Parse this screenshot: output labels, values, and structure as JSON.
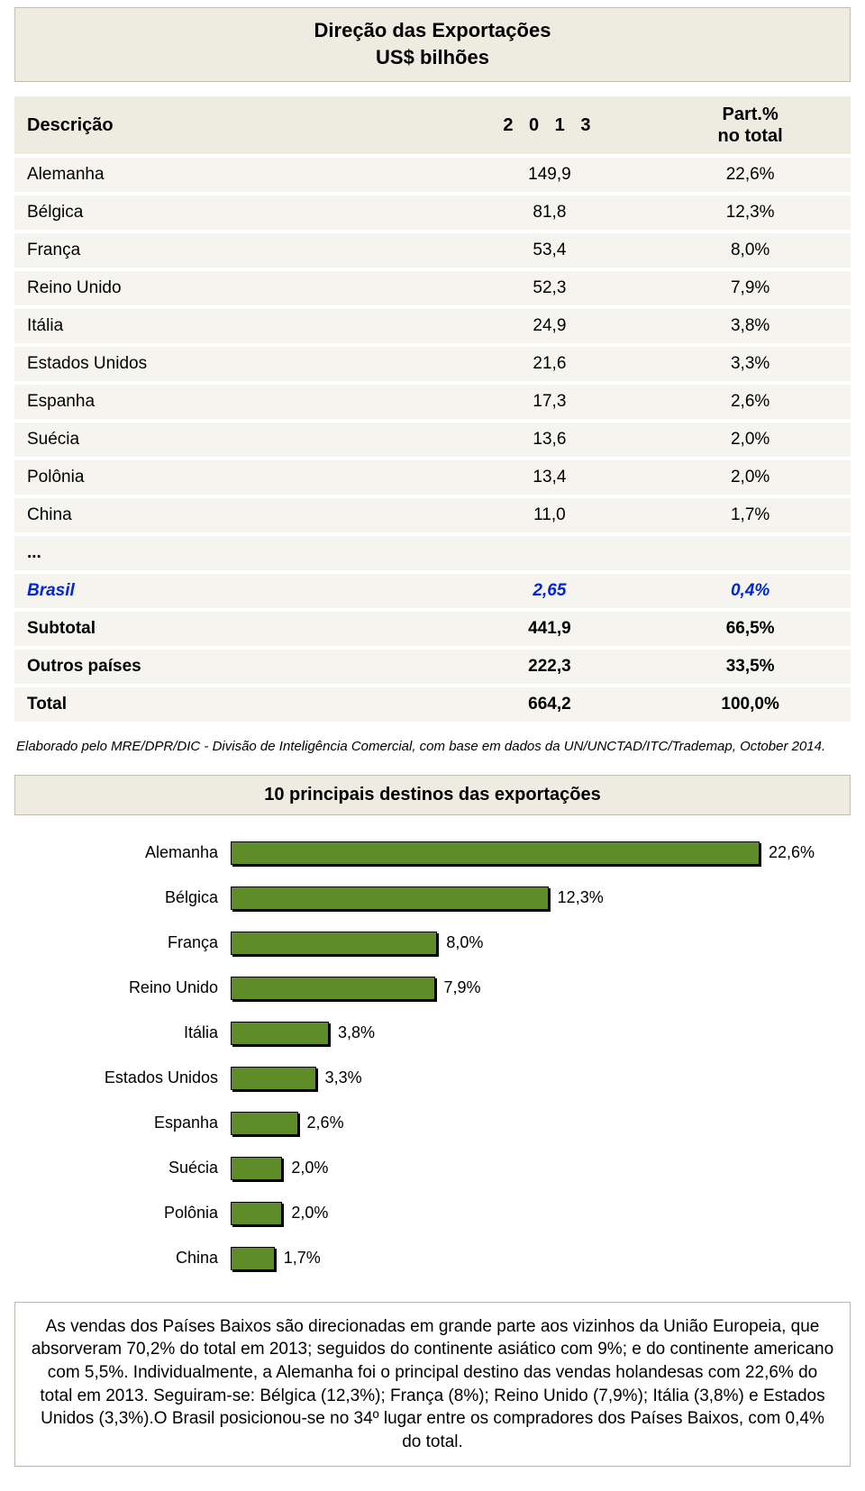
{
  "title": {
    "line1": "Direção das Exportações",
    "line2": "US$ bilhões"
  },
  "header": {
    "c1": "Descrição",
    "c2": "2 0 1 3",
    "c3a": "Part.%",
    "c3b": "no total"
  },
  "rows": [
    {
      "d": "Alemanha",
      "v": "149,9",
      "p": "22,6%",
      "bold": false
    },
    {
      "d": "Bélgica",
      "v": "81,8",
      "p": "12,3%",
      "bold": false
    },
    {
      "d": "França",
      "v": "53,4",
      "p": "8,0%",
      "bold": false
    },
    {
      "d": "Reino Unido",
      "v": "52,3",
      "p": "7,9%",
      "bold": false
    },
    {
      "d": "Itália",
      "v": "24,9",
      "p": "3,8%",
      "bold": false
    },
    {
      "d": "Estados Unidos",
      "v": "21,6",
      "p": "3,3%",
      "bold": false
    },
    {
      "d": "Espanha",
      "v": "17,3",
      "p": "2,6%",
      "bold": false
    },
    {
      "d": "Suécia",
      "v": "13,6",
      "p": "2,0%",
      "bold": false
    },
    {
      "d": "Polônia",
      "v": "13,4",
      "p": "2,0%",
      "bold": false
    },
    {
      "d": "China",
      "v": "11,0",
      "p": "1,7%",
      "bold": false
    }
  ],
  "ellipsis": "...",
  "brasil": {
    "d": "Brasil",
    "v": "2,65",
    "p": "0,4%"
  },
  "totals": [
    {
      "d": "Subtotal",
      "v": "441,9",
      "p": "66,5%"
    },
    {
      "d": "Outros países",
      "v": "222,3",
      "p": "33,5%"
    },
    {
      "d": "Total",
      "v": "664,2",
      "p": "100,0%"
    }
  ],
  "source": "Elaborado pelo MRE/DPR/DIC - Divisão de Inteligência Comercial, com base em dados da UN/UNCTAD/ITC/Trademap, October 2014.",
  "chart": {
    "title": "10 principais destinos das exportações",
    "type": "bar",
    "bar_color": "#5d8c29",
    "border_color": "#000000",
    "shadow_color": "#000000",
    "background": "#ffffff",
    "max_pct": 22.6,
    "full_width_pct": 22.6,
    "label_fontsize": 18,
    "value_fontsize": 18,
    "series": [
      {
        "label": "Alemanha",
        "pct": 22.6,
        "text": "22,6%"
      },
      {
        "label": "Bélgica",
        "pct": 12.3,
        "text": "12,3%"
      },
      {
        "label": "França",
        "pct": 8.0,
        "text": "8,0%"
      },
      {
        "label": "Reino Unido",
        "pct": 7.9,
        "text": "7,9%"
      },
      {
        "label": "Itália",
        "pct": 3.8,
        "text": "3,8%"
      },
      {
        "label": "Estados Unidos",
        "pct": 3.3,
        "text": "3,3%"
      },
      {
        "label": "Espanha",
        "pct": 2.6,
        "text": "2,6%"
      },
      {
        "label": "Suécia",
        "pct": 2.0,
        "text": "2,0%"
      },
      {
        "label": "Polônia",
        "pct": 2.0,
        "text": "2,0%"
      },
      {
        "label": "China",
        "pct": 1.7,
        "text": "1,7%"
      }
    ]
  },
  "note": "As vendas dos Países Baixos são direcionadas em grande parte aos vizinhos da União Europeia, que absorveram 70,2% do total em 2013; seguidos do continente asiático com 9%; e do continente americano com 5,5%. Individualmente, a Alemanha foi o principal destino das vendas holandesas com 22,6% do total em 2013. Seguiram-se: Bélgica (12,3%); França (8%); Reino Unido (7,9%); Itália (3,8%) e Estados Unidos (3,3%).O Brasil posicionou-se no 34º lugar entre os compradores dos Países Baixos, com 0,4% do total.",
  "colors": {
    "panel_bg": "#eeece1",
    "panel_border": "#c0c0b0",
    "row_bg": "#f5f4ee",
    "italic_color": "#0026d9"
  }
}
